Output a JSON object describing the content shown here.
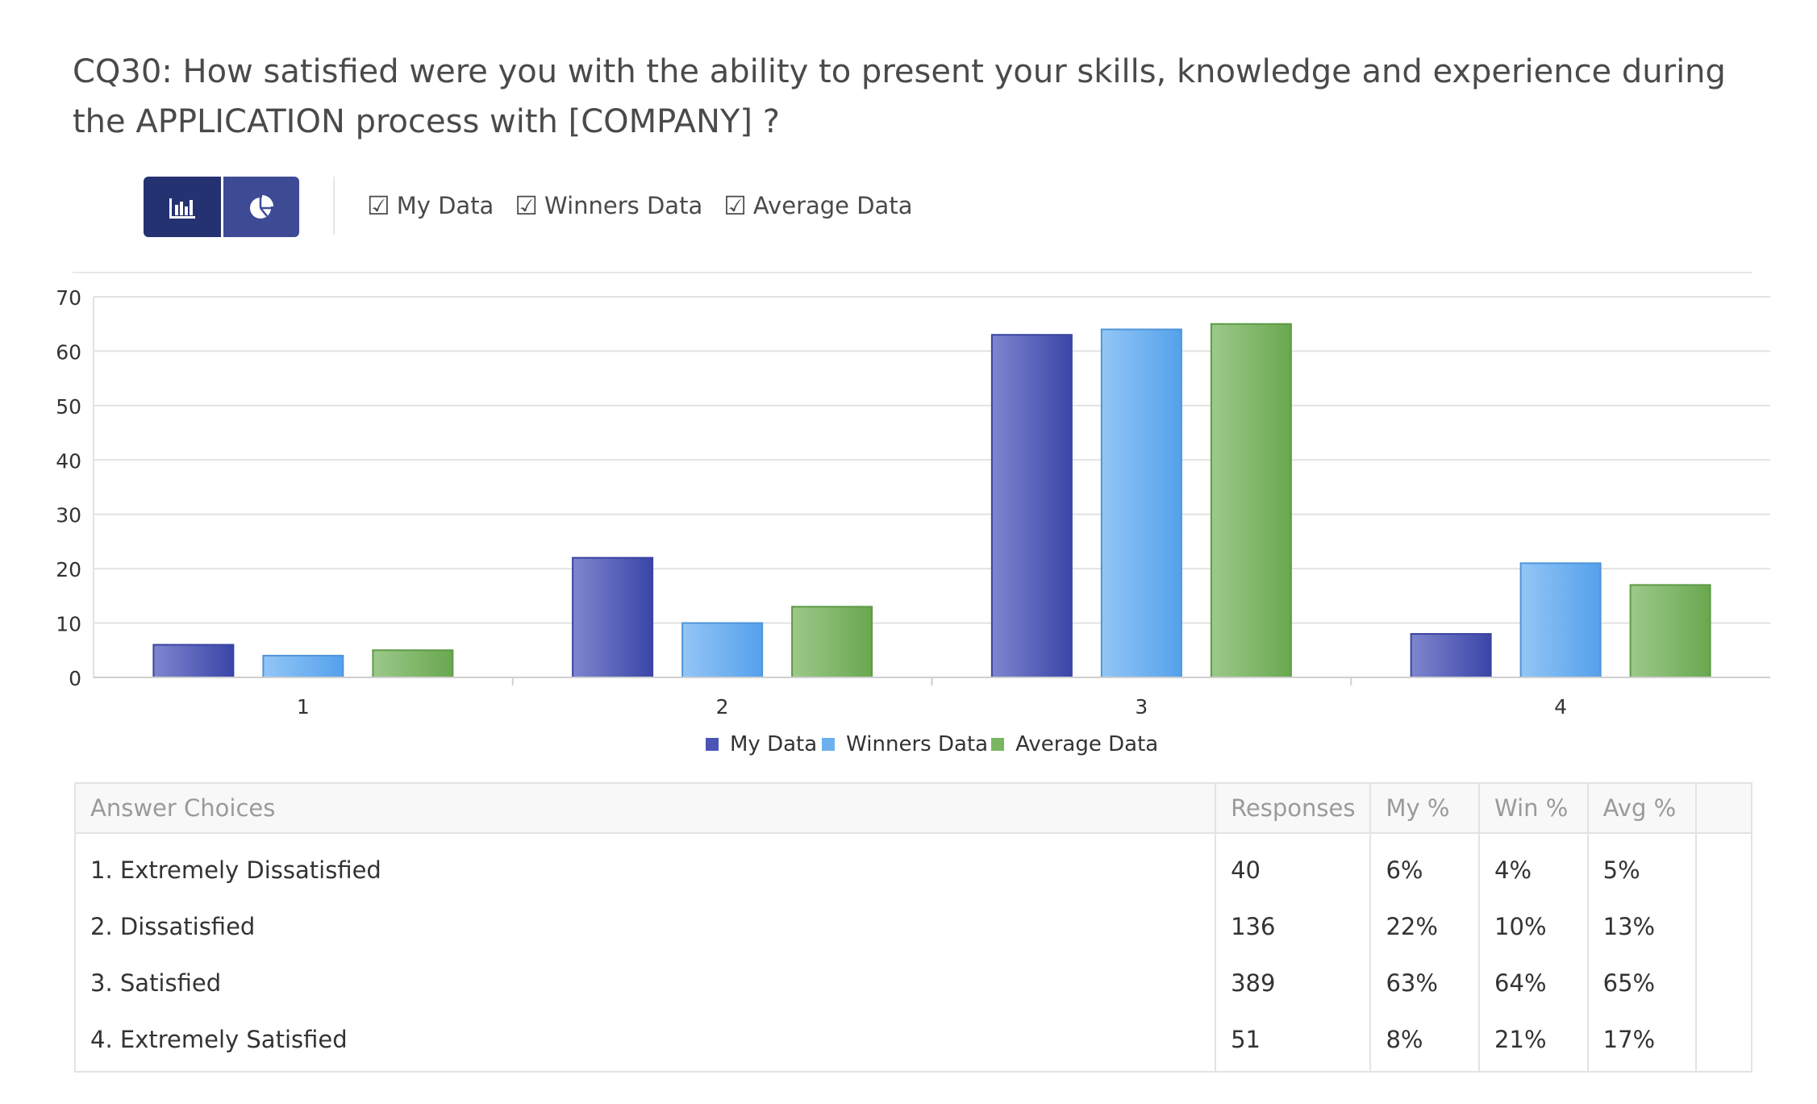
{
  "title": "CQ30: How satisfied were you with the ability to present your skills, knowledge and experience during the APPLICATION process with [COMPANY] ?",
  "toolbar": {
    "bar_icon": "bar-chart-icon",
    "pie_icon": "pie-chart-icon",
    "checkboxes": [
      {
        "label": "My Data",
        "checked": true
      },
      {
        "label": "Winners Data",
        "checked": true
      },
      {
        "label": "Average Data",
        "checked": true
      }
    ],
    "check_glyph": "☑"
  },
  "colors": {
    "my": "#4a55b6",
    "winners": "#6db0f0",
    "average": "#7ab662",
    "active_toggle": "#253271",
    "toggle": "#3e4b94"
  },
  "chart_data": {
    "type": "bar",
    "categories": [
      "1",
      "2",
      "3",
      "4"
    ],
    "series": [
      {
        "name": "My Data",
        "values": [
          6,
          22,
          63,
          8
        ]
      },
      {
        "name": "Winners Data",
        "values": [
          4,
          10,
          64,
          21
        ]
      },
      {
        "name": "Average Data",
        "values": [
          5,
          13,
          65,
          17
        ]
      }
    ],
    "ylim": [
      0,
      70
    ],
    "yticks": [
      "0",
      "10",
      "20",
      "30",
      "40",
      "50",
      "60",
      "70"
    ],
    "grid": true,
    "legend_position": "bottom-center"
  },
  "table": {
    "headers": [
      "Answer Choices",
      "Responses",
      "My %",
      "Win %",
      "Avg %"
    ],
    "rows": [
      {
        "choice": "1. Extremely Dissatisfied",
        "responses": "40",
        "my": "6%",
        "win": "4%",
        "avg": "5%"
      },
      {
        "choice": "2. Dissatisfied",
        "responses": "136",
        "my": "22%",
        "win": "10%",
        "avg": "13%"
      },
      {
        "choice": "3. Satisfied",
        "responses": "389",
        "my": "63%",
        "win": "64%",
        "avg": "65%"
      },
      {
        "choice": "4. Extremely Satisfied",
        "responses": "51",
        "my": "8%",
        "win": "21%",
        "avg": "17%"
      }
    ]
  }
}
